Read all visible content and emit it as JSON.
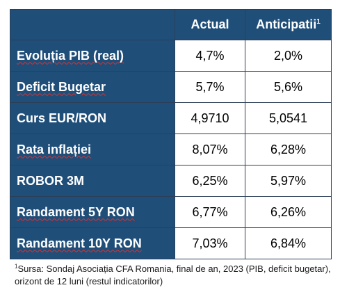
{
  "table": {
    "headers": {
      "actual": "Actual",
      "anticipatii": "Anticipatii",
      "anticipatii_sup": "1"
    },
    "rows": [
      {
        "label": "Evoluția PIB (real)",
        "actual": "4,7%",
        "anticipatii": "2,0%"
      },
      {
        "label": "Deficit Bugetar",
        "actual": "5,7%",
        "anticipatii": "5,6%"
      },
      {
        "label": "Curs EUR/RON",
        "actual": "4,9710",
        "anticipatii": "5,0541"
      },
      {
        "label": "Rata inflației",
        "actual": "8,07%",
        "anticipatii": "6,28%"
      },
      {
        "label": "ROBOR 3M",
        "actual": "6,25%",
        "anticipatii": "5,97%"
      },
      {
        "label": "Randament 5Y RON",
        "actual": "6,77%",
        "anticipatii": "6,26%"
      },
      {
        "label": "Randament 10Y RON",
        "actual": "7,03%",
        "anticipatii": "6,84%"
      }
    ]
  },
  "footnote": {
    "marker": "1",
    "text": "Sursa: Sondaj Asociația CFA Romania, final de an, 2023 (PIB, deficit bugetar), orizont de 12 luni (restul indicatorilor)"
  },
  "colors": {
    "header_bg": "#1f4e79",
    "header_text": "#ffffff",
    "cell_bg": "#ffffff",
    "spellcheck_underline": "#e03030"
  }
}
